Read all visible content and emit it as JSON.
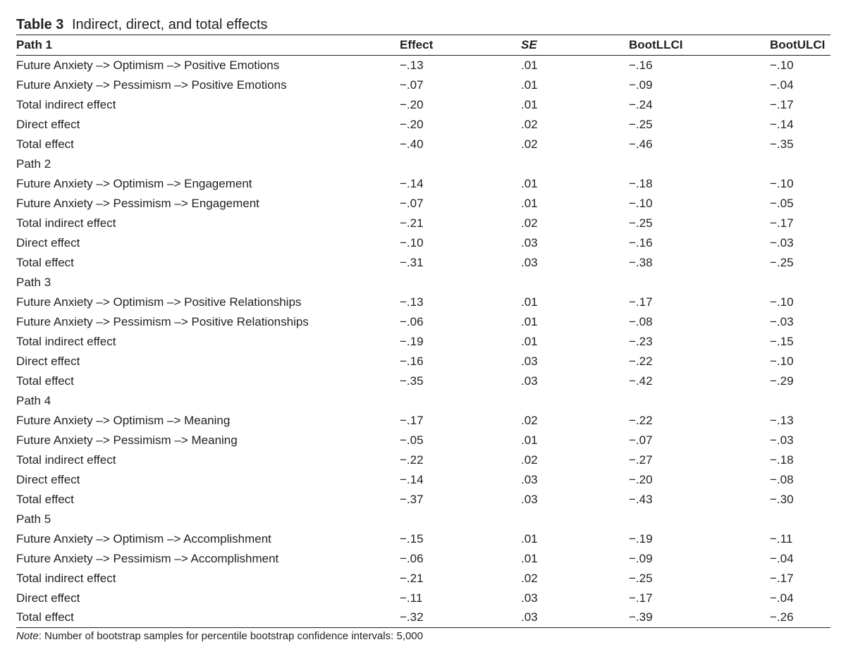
{
  "title": {
    "label": "Table 3",
    "caption": "Indirect, direct, and total effects"
  },
  "columns": [
    "Path 1",
    "Effect",
    "SE",
    "BootLLCI",
    "BootULCI"
  ],
  "rows": [
    [
      "Future Anxiety –> Optimism –> Positive Emotions",
      "−.13",
      ".01",
      "−.16",
      "−.10"
    ],
    [
      "Future Anxiety –> Pessimism –> Positive Emotions",
      "−.07",
      ".01",
      "−.09",
      "−.04"
    ],
    [
      "Total indirect effect",
      "−.20",
      ".01",
      "−.24",
      "−.17"
    ],
    [
      "Direct effect",
      "−.20",
      ".02",
      "−.25",
      "−.14"
    ],
    [
      "Total effect",
      "−.40",
      ".02",
      "−.46",
      "−.35"
    ],
    [
      "Path 2",
      "",
      "",
      "",
      ""
    ],
    [
      "Future Anxiety –> Optimism –> Engagement",
      "−.14",
      ".01",
      "−.18",
      "−.10"
    ],
    [
      "Future Anxiety –> Pessimism –> Engagement",
      "−.07",
      ".01",
      "−.10",
      "−.05"
    ],
    [
      "Total indirect effect",
      "−.21",
      ".02",
      "−.25",
      "−.17"
    ],
    [
      "Direct effect",
      "−.10",
      ".03",
      "−.16",
      "−.03"
    ],
    [
      "Total effect",
      "−.31",
      ".03",
      "−.38",
      "−.25"
    ],
    [
      "Path 3",
      "",
      "",
      "",
      ""
    ],
    [
      "Future Anxiety –> Optimism –> Positive Relationships",
      "−.13",
      ".01",
      "−.17",
      "−.10"
    ],
    [
      "Future Anxiety –> Pessimism –> Positive Relationships",
      "−.06",
      ".01",
      "−.08",
      "−.03"
    ],
    [
      "Total indirect effect",
      "−.19",
      ".01",
      "−.23",
      "−.15"
    ],
    [
      "Direct effect",
      "−.16",
      ".03",
      "−.22",
      "−.10"
    ],
    [
      "Total effect",
      "−.35",
      ".03",
      "−.42",
      "−.29"
    ],
    [
      "Path 4",
      "",
      "",
      "",
      ""
    ],
    [
      "Future Anxiety –> Optimism –> Meaning",
      "−.17",
      ".02",
      "−.22",
      "−.13"
    ],
    [
      "Future Anxiety –> Pessimism –> Meaning",
      "−.05",
      ".01",
      "−.07",
      "−.03"
    ],
    [
      "Total indirect effect",
      "−.22",
      ".02",
      "−.27",
      "−.18"
    ],
    [
      "Direct effect",
      "−.14",
      ".03",
      "−.20",
      "−.08"
    ],
    [
      "Total effect",
      "−.37",
      ".03",
      "−.43",
      "−.30"
    ],
    [
      "Path 5",
      "",
      "",
      "",
      ""
    ],
    [
      "Future Anxiety –> Optimism –> Accomplishment",
      "−.15",
      ".01",
      "−.19",
      "−.11"
    ],
    [
      "Future Anxiety –> Pessimism –> Accomplishment",
      "−.06",
      ".01",
      "−.09",
      "−.04"
    ],
    [
      "Total indirect effect",
      "−.21",
      ".02",
      "−.25",
      "−.17"
    ],
    [
      "Direct effect",
      "−.11",
      ".03",
      "−.17",
      "−.04"
    ],
    [
      "Total effect",
      "−.32",
      ".03",
      "−.39",
      "−.26"
    ]
  ],
  "note": {
    "label": "Note",
    "text": ": Number of bootstrap samples for percentile bootstrap confidence intervals: 5,000"
  }
}
